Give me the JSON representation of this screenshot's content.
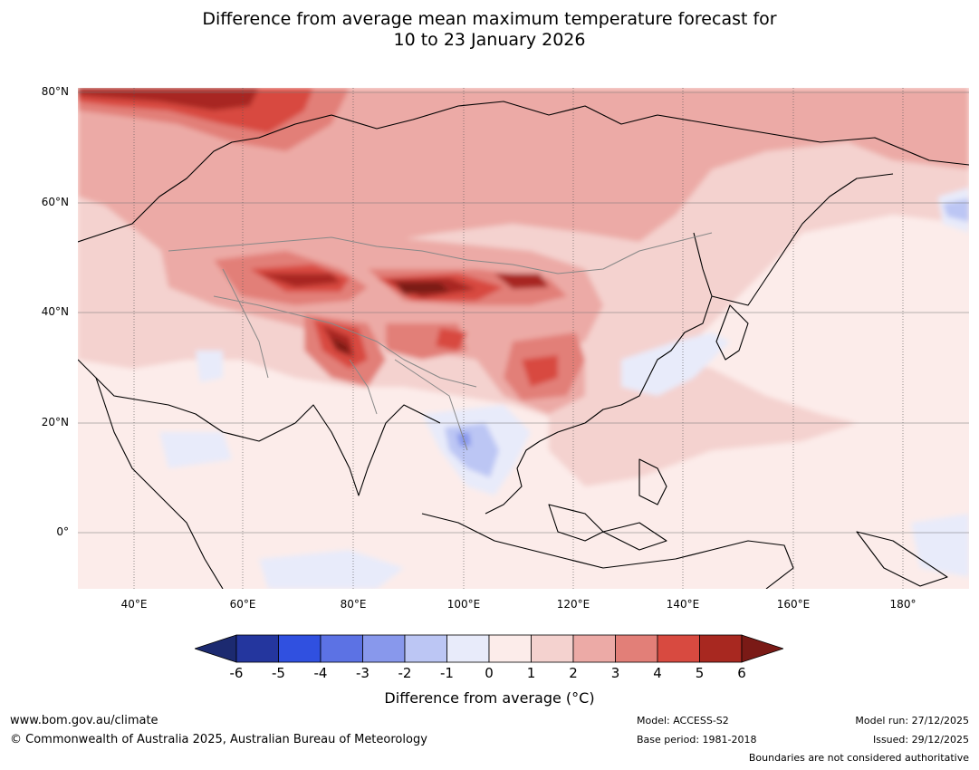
{
  "title_line1": "Difference from average mean maximum temperature forecast for",
  "title_line2": "10 to 23 January 2026",
  "lat_labels": [
    "80°N",
    "60°N",
    "40°N",
    "20°N",
    "0°"
  ],
  "lon_labels": [
    "40°E",
    "60°E",
    "80°E",
    "100°E",
    "120°E",
    "140°E",
    "160°E",
    "180°"
  ],
  "colorbar": {
    "ticks": [
      "-6",
      "-5",
      "-4",
      "-3",
      "-2",
      "-1",
      "0",
      "1",
      "2",
      "3",
      "4",
      "5",
      "6"
    ],
    "label": "Difference from average (°C)",
    "colors": [
      "#24369e",
      "#3050e0",
      "#5c72e4",
      "#8898ec",
      "#bcc6f4",
      "#e8ebfa",
      "#fcecea",
      "#f4d2cf",
      "#ecaaa6",
      "#e27f78",
      "#d84a40",
      "#a82820"
    ],
    "under_color": "#1c2a70",
    "over_color": "#7a1a16"
  },
  "footer": {
    "website": "www.bom.gov.au/climate",
    "copyright": "© Commonwealth of Australia 2025, Australian Bureau of Meteorology",
    "model": "Model: ACCESS-S2",
    "base_period": "Base period: 1981-2018",
    "model_run": "Model run: 27/12/2025",
    "issued": "Issued: 29/12/2025",
    "disclaimer": "Boundaries are not considered authoritative"
  }
}
